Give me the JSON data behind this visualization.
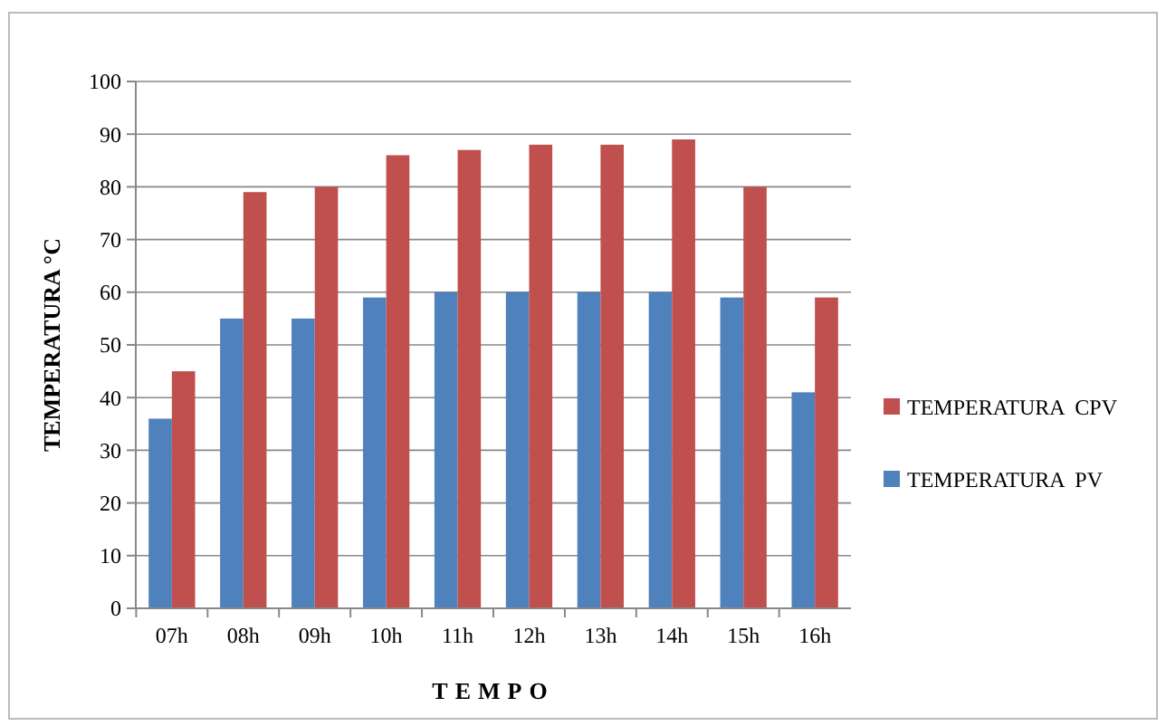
{
  "chart_data": {
    "type": "bar",
    "xlabel": "TEMPO",
    "ylabel": "TEMPERATURA °C",
    "categories": [
      "07h",
      "08h",
      "09h",
      "10h",
      "11h",
      "12h",
      "13h",
      "14h",
      "15h",
      "16h"
    ],
    "series": [
      {
        "name": "TEMPERATURA  PV",
        "color": "#4f81bd",
        "values": [
          36,
          55,
          55,
          59,
          60,
          60,
          60,
          60,
          59,
          41
        ]
      },
      {
        "name": "TEMPERATURA  CPV",
        "color": "#c0504d",
        "values": [
          45,
          79,
          80,
          86,
          87,
          88,
          88,
          89,
          80,
          59
        ]
      }
    ],
    "ylim": [
      0,
      100
    ],
    "yticks": [
      0,
      10,
      20,
      30,
      40,
      50,
      60,
      70,
      80,
      90,
      100
    ],
    "grid": "y",
    "legend": "right"
  }
}
